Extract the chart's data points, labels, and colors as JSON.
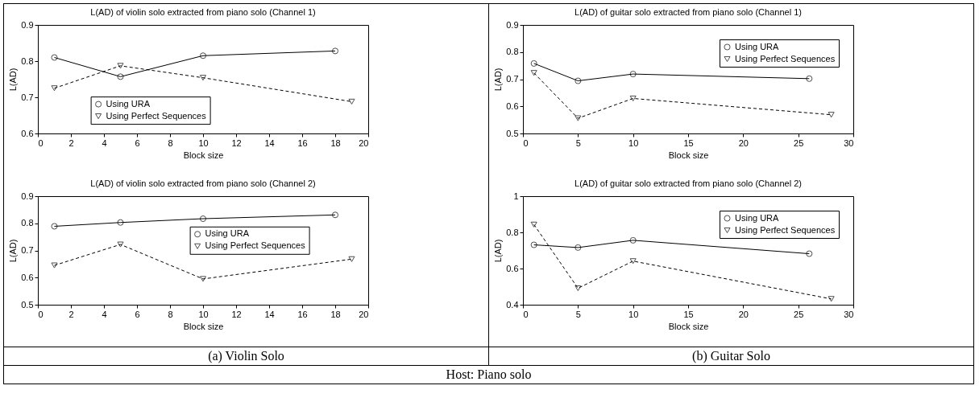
{
  "chart_data": [
    {
      "type": "line",
      "title": "L(AD) of violin solo extracted from piano solo (Channel 1)",
      "xlabel": "Block size",
      "ylabel": "L(AD)",
      "xlim": [
        0,
        20
      ],
      "xticks": [
        0,
        2,
        4,
        6,
        8,
        10,
        12,
        14,
        16,
        18,
        20
      ],
      "ylim": [
        0.6,
        0.9
      ],
      "yticks": [
        0.6,
        0.7,
        0.8,
        0.9
      ],
      "grid": false,
      "legend": "bottom left",
      "series": [
        {
          "name": "Using URA",
          "color": "#000000",
          "marker": "circle",
          "line_style": "solid",
          "x": [
            1,
            5,
            10,
            18
          ],
          "values": [
            0.81,
            0.757,
            0.815,
            0.828
          ]
        },
        {
          "name": "Using Perfect Sequences",
          "color": "#000000",
          "marker": "triangle",
          "line_style": "dashed",
          "x": [
            1,
            5,
            10,
            19
          ],
          "values": [
            0.725,
            0.787,
            0.754,
            0.688
          ]
        }
      ]
    },
    {
      "type": "line",
      "title": "L(AD) of violin solo extracted from piano solo (Channel 2)",
      "xlabel": "Block size",
      "ylabel": "L(AD)",
      "xlim": [
        0,
        20
      ],
      "xticks": [
        0,
        2,
        4,
        6,
        8,
        10,
        12,
        14,
        16,
        18,
        20
      ],
      "ylim": [
        0.5,
        0.9
      ],
      "yticks": [
        0.5,
        0.6,
        0.7,
        0.8,
        0.9
      ],
      "grid": false,
      "legend": "right",
      "annotations": [
        "(a) Violin Solo"
      ],
      "series": [
        {
          "name": "Using URA",
          "color": "#000000",
          "marker": "circle",
          "line_style": "solid",
          "x": [
            1,
            5,
            10,
            18
          ],
          "values": [
            0.789,
            0.803,
            0.817,
            0.831
          ]
        },
        {
          "name": "Using Perfect Sequences",
          "color": "#000000",
          "marker": "triangle",
          "line_style": "dashed",
          "x": [
            1,
            5,
            10,
            19
          ],
          "values": [
            0.645,
            0.722,
            0.595,
            0.668
          ]
        }
      ]
    },
    {
      "type": "line",
      "title": "L(AD) of guitar solo extracted from piano solo (Channel 1)",
      "xlabel": "Block size",
      "ylabel": "L(AD)",
      "xlim": [
        0,
        30
      ],
      "xticks": [
        0,
        5,
        10,
        15,
        20,
        25,
        30
      ],
      "ylim": [
        0.5,
        0.9
      ],
      "yticks": [
        0.5,
        0.6,
        0.7,
        0.8,
        0.9
      ],
      "grid": false,
      "legend": "top right",
      "series": [
        {
          "name": "Using URA",
          "color": "#000000",
          "marker": "circle",
          "line_style": "solid",
          "x": [
            1,
            5,
            10,
            26
          ],
          "values": [
            0.758,
            0.694,
            0.719,
            0.702
          ]
        },
        {
          "name": "Using Perfect Sequences",
          "color": "#000000",
          "marker": "triangle",
          "line_style": "dashed",
          "x": [
            1,
            5,
            10,
            28
          ],
          "values": [
            0.723,
            0.556,
            0.629,
            0.569
          ]
        }
      ]
    },
    {
      "type": "line",
      "title": "L(AD) of guitar solo extracted from piano solo (Channel 2)",
      "xlabel": "Block size",
      "ylabel": "L(AD)",
      "xlim": [
        0,
        30
      ],
      "xticks": [
        0,
        5,
        10,
        15,
        20,
        25,
        30
      ],
      "ylim": [
        0.4,
        1
      ],
      "yticks": [
        0.4,
        0.6,
        0.8,
        {
          "value": 1,
          "label": "1"
        }
      ],
      "grid": false,
      "legend": "top right",
      "annotations": [
        "(b) Guitar Solo",
        "Host: Piano solo"
      ],
      "series": [
        {
          "name": "Using URA",
          "color": "#000000",
          "marker": "circle",
          "line_style": "solid",
          "x": [
            1,
            5,
            10,
            26
          ],
          "values": [
            0.731,
            0.716,
            0.756,
            0.682
          ]
        },
        {
          "name": "Using Perfect Sequences",
          "color": "#000000",
          "marker": "triangle",
          "line_style": "dashed",
          "x": [
            1,
            5,
            10,
            28
          ],
          "values": [
            0.843,
            0.491,
            0.641,
            0.432
          ]
        }
      ]
    }
  ]
}
